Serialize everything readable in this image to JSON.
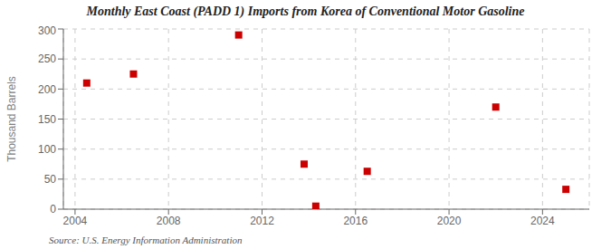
{
  "chart_data": {
    "type": "scatter",
    "title": "Monthly East Coast (PADD 1) Imports from Korea of Conventional Motor Gasoline",
    "ylabel": "Thousand Barrels",
    "annotations": [
      "Source: U.S. Energy Information Administration"
    ],
    "x": [
      2004.5,
      2006.5,
      2011.0,
      2013.8,
      2014.3,
      2016.5,
      2022.0,
      2025.0
    ],
    "values": [
      210,
      225,
      290,
      75,
      5,
      63,
      170,
      33
    ],
    "color": "#cc0000",
    "marker": "square",
    "xlim": [
      2003.5,
      2026.0
    ],
    "ylim": [
      0,
      300
    ],
    "xticks": [
      2004,
      2008,
      2012,
      2016,
      2020,
      2024
    ],
    "yticks": [
      0,
      50,
      100,
      150,
      200,
      250,
      300
    ],
    "grid": true
  }
}
